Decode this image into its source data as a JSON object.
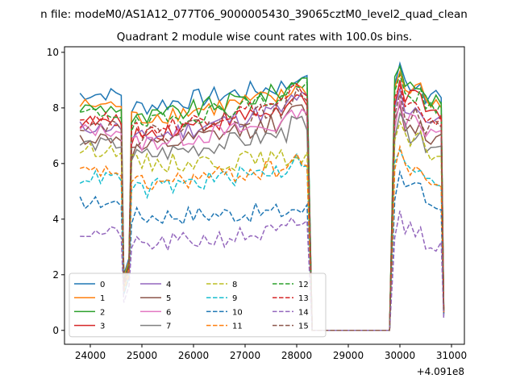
{
  "figure": {
    "suptitle": "n file: modeM0/AS1A12_077T06_9000005430_39065cztM0_level2_quad_clean"
  },
  "chart_data": {
    "type": "line",
    "title": "Quadrant 2 module wise count rates with 100.0s bins.",
    "xlabel": "",
    "ylabel": "",
    "x_offset_label": "+4.091e8",
    "xlim": [
      23500,
      31250
    ],
    "ylim": [
      -0.5,
      10.2
    ],
    "x_ticks": [
      24000,
      25000,
      26000,
      27000,
      28000,
      29000,
      30000,
      31000
    ],
    "x_tick_labels": [
      "24000",
      "25000",
      "26000",
      "27000",
      "28000",
      "29000",
      "30000",
      "31000"
    ],
    "y_ticks": [
      0,
      2,
      4,
      6,
      8,
      10
    ],
    "y_tick_labels": [
      "0",
      "2",
      "4",
      "6",
      "8",
      "10"
    ],
    "grid": false,
    "legend_position": "lower-left",
    "legend_columns": 4,
    "segments": [
      {
        "x_start": 23800,
        "x_end": 24600
      },
      {
        "x_start": 24800,
        "x_end": 28200
      },
      {
        "x_start": 29900,
        "x_end": 30800
      }
    ],
    "gap_points": [
      {
        "x": 24650,
        "note": "dip"
      },
      {
        "x": 24750,
        "note": "dip"
      },
      {
        "x": 28300,
        "y": 0
      },
      {
        "x": 29800,
        "y": 0
      },
      {
        "x": 30850
      }
    ],
    "series": [
      {
        "name": "0",
        "color": "#1f77b4",
        "dash": "solid",
        "base": 8.3,
        "amp": 0.25,
        "peak": 9.3,
        "second": 8.9,
        "dip": 2.0
      },
      {
        "name": "1",
        "color": "#ff7f0e",
        "dash": "solid",
        "base": 7.9,
        "amp": 0.25,
        "peak": 8.9,
        "second": 8.6,
        "dip": 1.9
      },
      {
        "name": "2",
        "color": "#2ca02c",
        "dash": "solid",
        "base": 7.8,
        "amp": 0.25,
        "peak": 9.2,
        "second": 8.8,
        "dip": 1.8
      },
      {
        "name": "3",
        "color": "#d62728",
        "dash": "solid",
        "base": 7.3,
        "amp": 0.25,
        "peak": 8.5,
        "second": 8.3,
        "dip": 1.7
      },
      {
        "name": "4",
        "color": "#9467bd",
        "dash": "solid",
        "base": 7.1,
        "amp": 0.25,
        "peak": 8.6,
        "second": 8.0,
        "dip": 1.5
      },
      {
        "name": "5",
        "color": "#8c564b",
        "dash": "solid",
        "base": 6.7,
        "amp": 0.25,
        "peak": 8.1,
        "second": 7.4,
        "dip": 1.7
      },
      {
        "name": "6",
        "color": "#e377c2",
        "dash": "solid",
        "base": 7.0,
        "amp": 0.25,
        "peak": 7.9,
        "second": 7.6,
        "dip": 1.6
      },
      {
        "name": "7",
        "color": "#7f7f7f",
        "dash": "solid",
        "base": 6.5,
        "amp": 0.25,
        "peak": 7.6,
        "second": 7.1,
        "dip": 1.5
      },
      {
        "name": "8",
        "color": "#bcbd22",
        "dash": "dashed",
        "base": 6.3,
        "amp": 0.25,
        "peak": 6.5,
        "second": 6.8,
        "dip": 1.5
      },
      {
        "name": "9",
        "color": "#17becf",
        "dash": "dashed",
        "base": 5.3,
        "amp": 0.25,
        "peak": 6.3,
        "second": 5.8,
        "dip": 1.3
      },
      {
        "name": "10",
        "color": "#1f77b4",
        "dash": "dashed",
        "base": 4.4,
        "amp": 0.25,
        "peak": 4.6,
        "second": 5.0,
        "dip": 1.3
      },
      {
        "name": "11",
        "color": "#ff7f0e",
        "dash": "dashed",
        "base": 5.5,
        "amp": 0.25,
        "peak": 6.3,
        "second": 5.9,
        "dip": 1.4
      },
      {
        "name": "12",
        "color": "#2ca02c",
        "dash": "dashed",
        "base": 7.6,
        "amp": 0.25,
        "peak": 9.0,
        "second": 8.5,
        "dip": 1.8
      },
      {
        "name": "13",
        "color": "#d62728",
        "dash": "dashed",
        "base": 7.4,
        "amp": 0.25,
        "peak": 8.8,
        "second": 8.1,
        "dip": 1.7
      },
      {
        "name": "14",
        "color": "#9467bd",
        "dash": "dashed",
        "base": 3.3,
        "amp": 0.25,
        "peak": 4.0,
        "second": 3.6,
        "dip": 1.0
      },
      {
        "name": "15",
        "color": "#8c564b",
        "dash": "dashed",
        "base": 7.2,
        "amp": 0.25,
        "peak": 8.6,
        "second": 7.8,
        "dip": 1.6
      }
    ]
  }
}
